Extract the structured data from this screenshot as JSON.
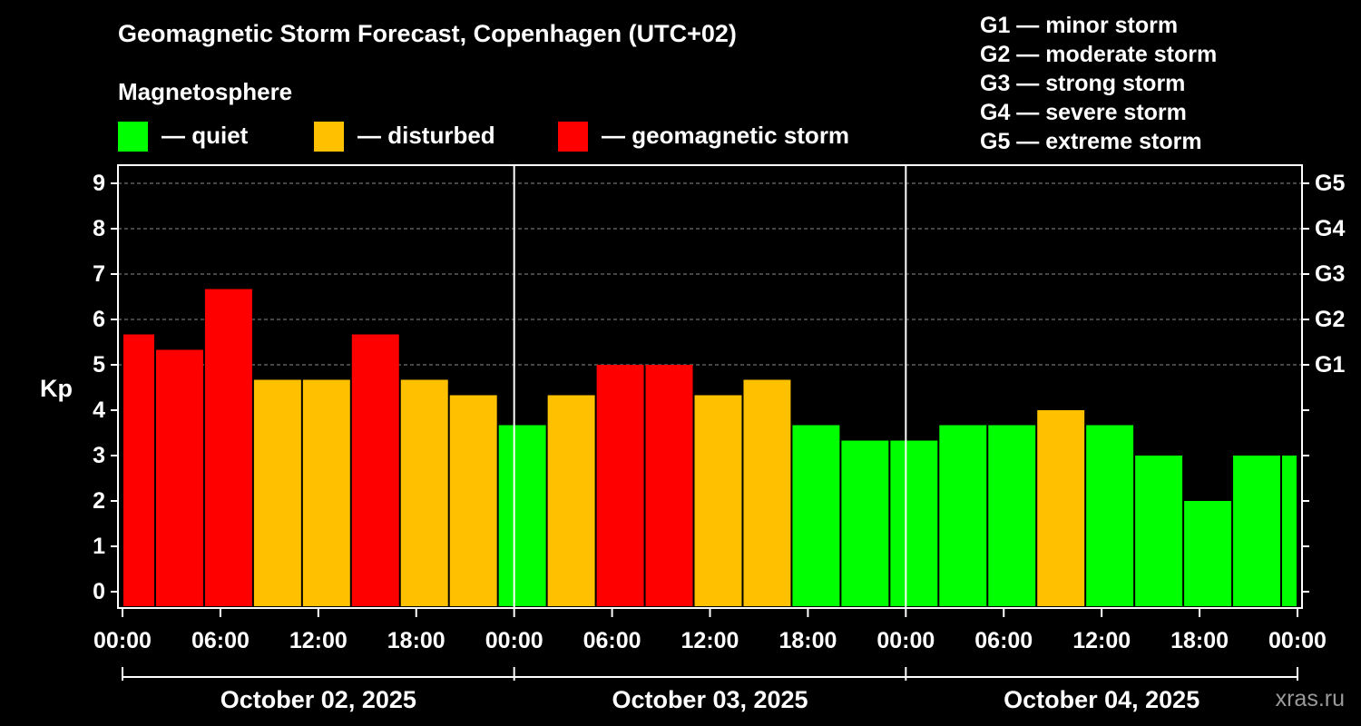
{
  "header": {
    "title": "Geomagnetic Storm Forecast, Copenhagen (UTC+02)",
    "legend_title": "Magnetosphere",
    "legend": [
      {
        "label": "— quiet",
        "color": "#00ff00"
      },
      {
        "label": "— disturbed",
        "color": "#ffc000"
      },
      {
        "label": "— geomagnetic storm",
        "color": "#ff0000"
      }
    ]
  },
  "storm_scale": [
    "G1 — minor storm",
    "G2 — moderate storm",
    "G3 — strong storm",
    "G4 — severe storm",
    "G5 — extreme storm"
  ],
  "watermark": "xras.ru",
  "chart_data": {
    "type": "bar",
    "ylabel": "Kp",
    "ylim": [
      0,
      9
    ],
    "yticks": [
      "0",
      "1",
      "2",
      "3",
      "4",
      "5",
      "6",
      "7",
      "8",
      "9"
    ],
    "right_axis": [
      {
        "value": 5,
        "label": "G1"
      },
      {
        "value": 6,
        "label": "G2"
      },
      {
        "value": 7,
        "label": "G3"
      },
      {
        "value": 8,
        "label": "G4"
      },
      {
        "value": 9,
        "label": "G5"
      }
    ],
    "x_ticks": [
      "00:00",
      "06:00",
      "12:00",
      "18:00",
      "00:00",
      "06:00",
      "12:00",
      "18:00",
      "00:00",
      "06:00",
      "12:00",
      "18:00",
      "00:00"
    ],
    "days": [
      "October 02, 2025",
      "October 03, 2025",
      "October 04, 2025"
    ],
    "hours_per_day": 24,
    "bars": [
      {
        "start": 0,
        "end": 2,
        "value": 5.67,
        "level": "storm"
      },
      {
        "start": 2,
        "end": 5,
        "value": 5.33,
        "level": "storm"
      },
      {
        "start": 5,
        "end": 8,
        "value": 6.67,
        "level": "storm"
      },
      {
        "start": 8,
        "end": 11,
        "value": 4.67,
        "level": "disturbed"
      },
      {
        "start": 11,
        "end": 14,
        "value": 4.67,
        "level": "disturbed"
      },
      {
        "start": 14,
        "end": 17,
        "value": 5.67,
        "level": "storm"
      },
      {
        "start": 17,
        "end": 20,
        "value": 4.67,
        "level": "disturbed"
      },
      {
        "start": 20,
        "end": 23,
        "value": 4.33,
        "level": "disturbed"
      },
      {
        "start": 23,
        "end": 26,
        "value": 3.67,
        "level": "quiet"
      },
      {
        "start": 26,
        "end": 29,
        "value": 4.33,
        "level": "disturbed"
      },
      {
        "start": 29,
        "end": 32,
        "value": 5.0,
        "level": "storm"
      },
      {
        "start": 32,
        "end": 35,
        "value": 5.0,
        "level": "storm"
      },
      {
        "start": 35,
        "end": 38,
        "value": 4.33,
        "level": "disturbed"
      },
      {
        "start": 38,
        "end": 41,
        "value": 4.67,
        "level": "disturbed"
      },
      {
        "start": 41,
        "end": 44,
        "value": 3.67,
        "level": "quiet"
      },
      {
        "start": 44,
        "end": 47,
        "value": 3.33,
        "level": "quiet"
      },
      {
        "start": 47,
        "end": 50,
        "value": 3.33,
        "level": "quiet"
      },
      {
        "start": 50,
        "end": 53,
        "value": 3.67,
        "level": "quiet"
      },
      {
        "start": 53,
        "end": 56,
        "value": 3.67,
        "level": "quiet"
      },
      {
        "start": 56,
        "end": 59,
        "value": 4.0,
        "level": "disturbed"
      },
      {
        "start": 59,
        "end": 62,
        "value": 3.67,
        "level": "quiet"
      },
      {
        "start": 62,
        "end": 65,
        "value": 3.0,
        "level": "quiet"
      },
      {
        "start": 65,
        "end": 68,
        "value": 2.0,
        "level": "quiet"
      },
      {
        "start": 68,
        "end": 71,
        "value": 3.0,
        "level": "quiet"
      },
      {
        "start": 71,
        "end": 72,
        "value": 3.0,
        "level": "quiet"
      }
    ],
    "colors": {
      "quiet": "#00ff00",
      "disturbed": "#ffc000",
      "storm": "#ff0000"
    }
  }
}
